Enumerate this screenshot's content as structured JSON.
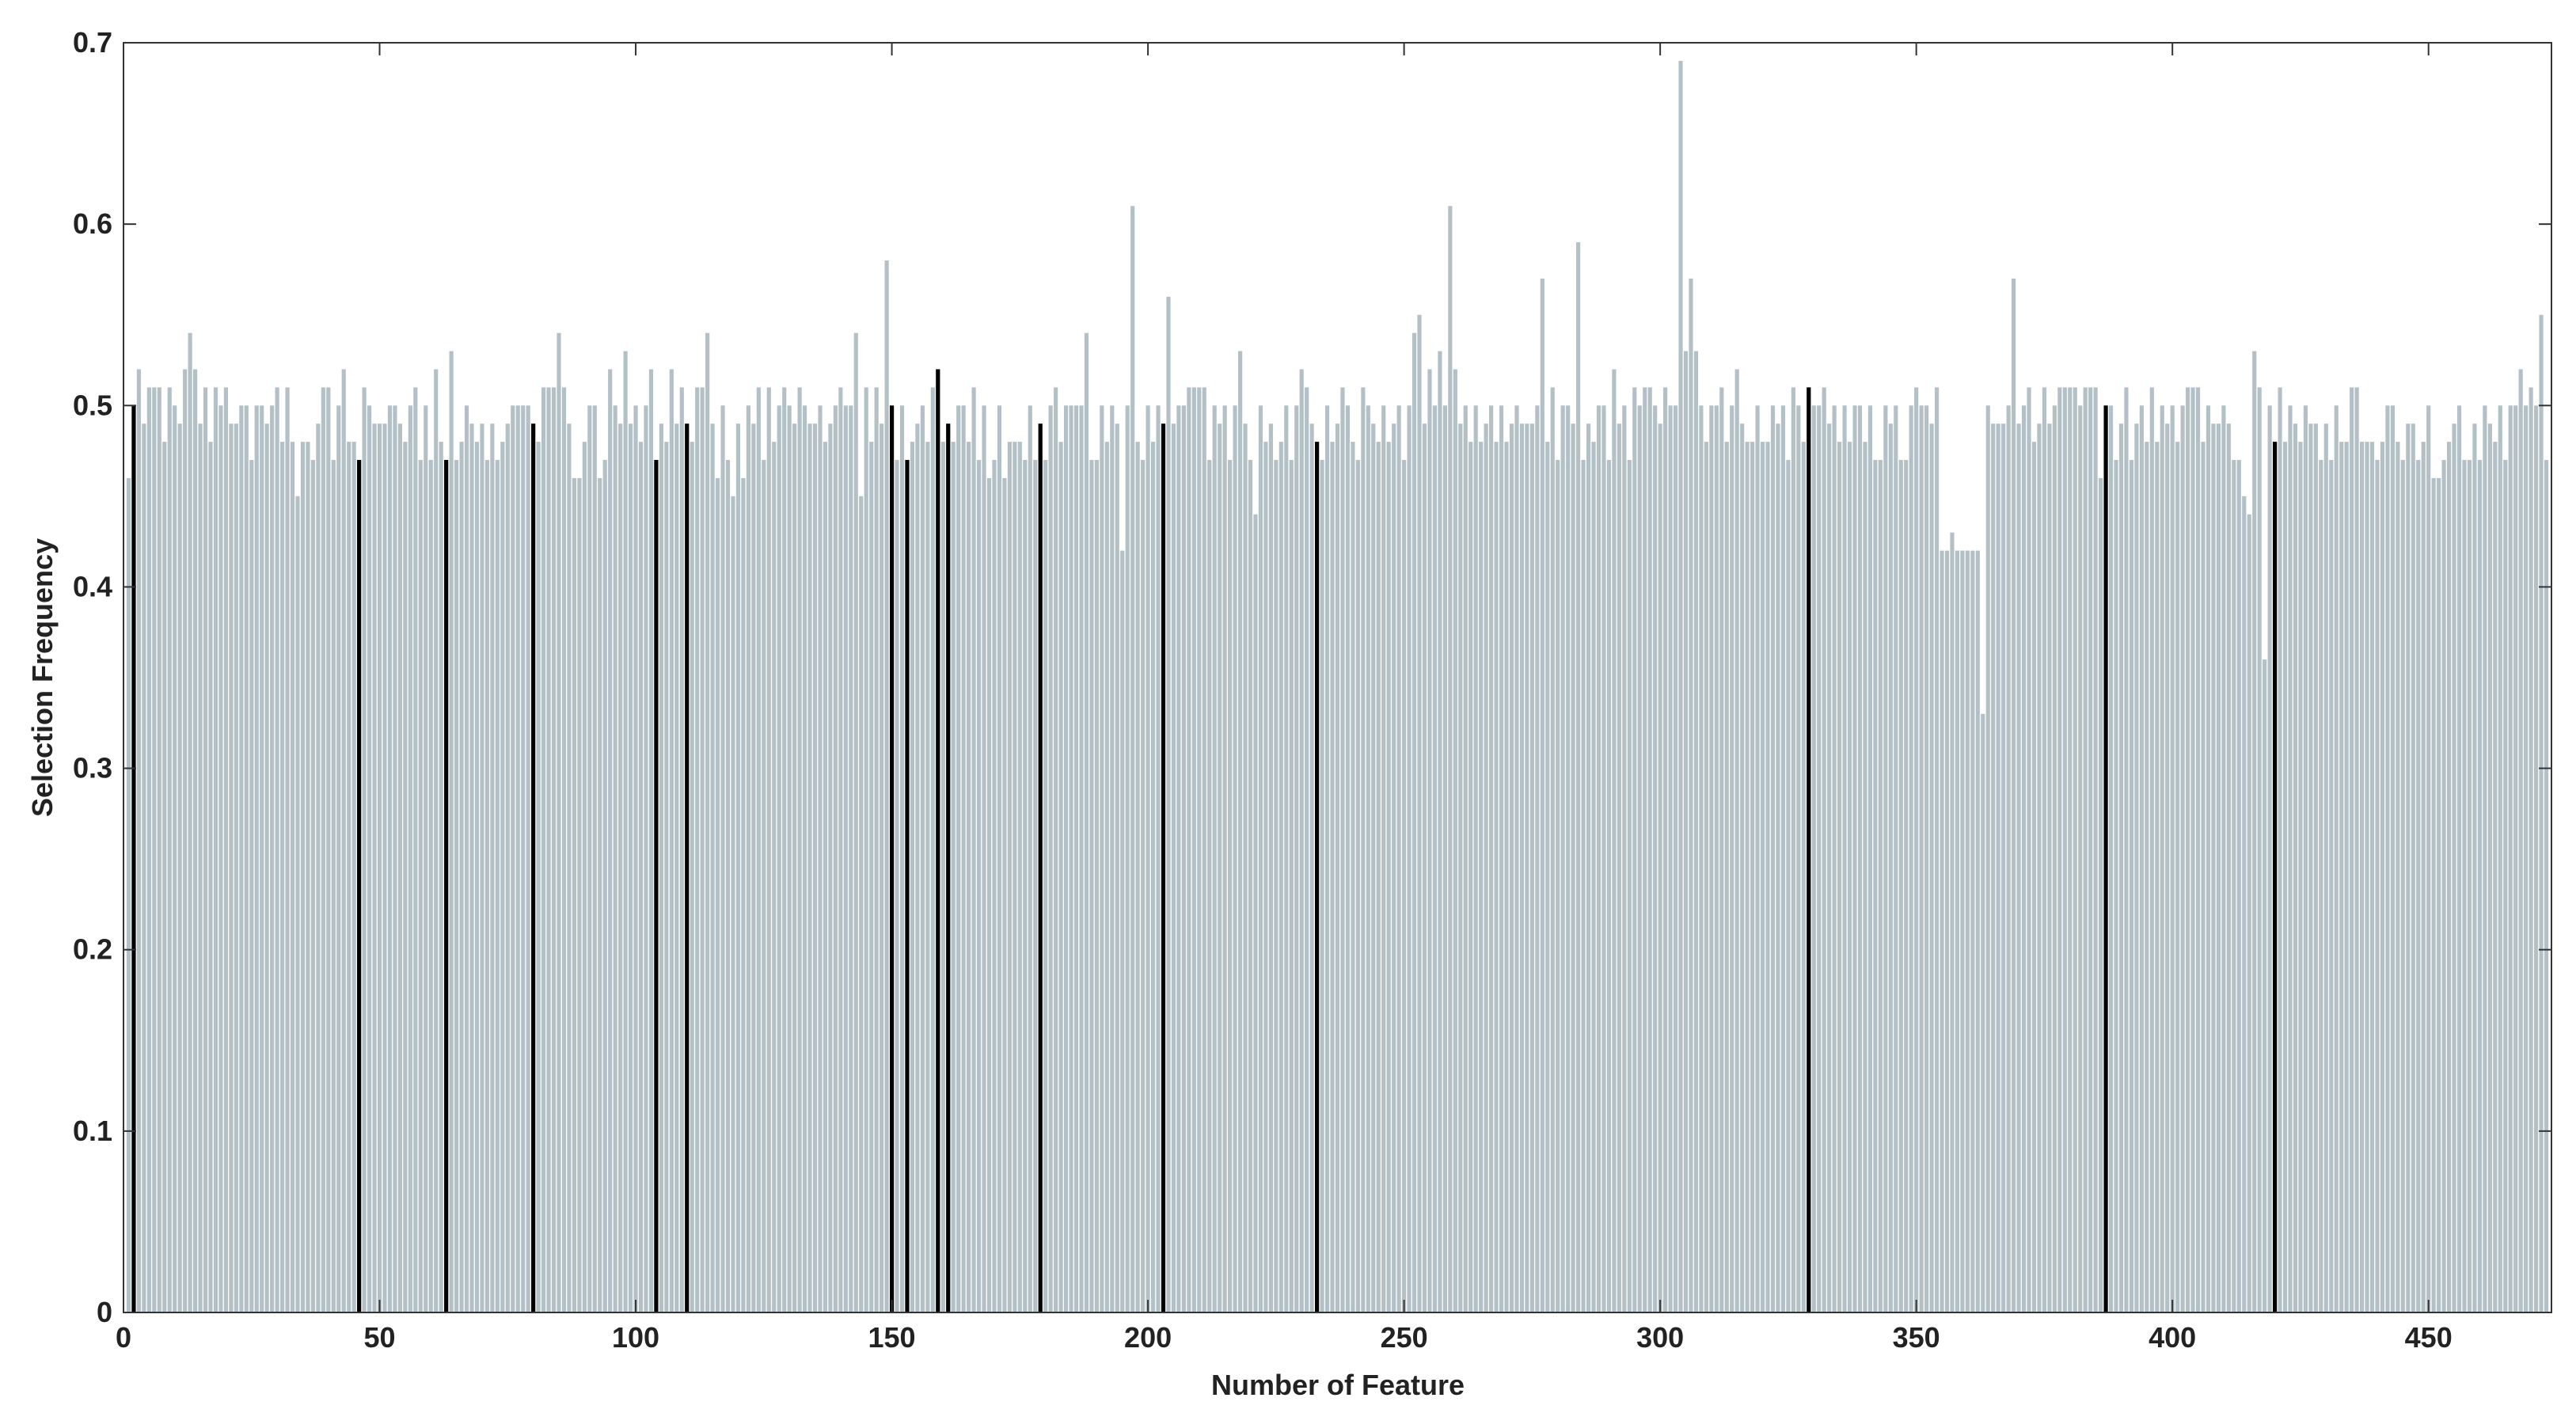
{
  "chart_data": {
    "type": "bar",
    "xlabel": "Number of Feature",
    "ylabel": "Selection Frequency",
    "xlim": [
      0,
      474
    ],
    "ylim": [
      0,
      0.7
    ],
    "xticks": [
      0,
      50,
      100,
      150,
      200,
      250,
      300,
      350,
      400,
      450
    ],
    "yticks": [
      0,
      0.1,
      0.2,
      0.3,
      0.4,
      0.5,
      0.6,
      0.7
    ],
    "series": [
      {
        "color": "#b3c1c7",
        "x": [
          1,
          2,
          3,
          4,
          5,
          6,
          7,
          8,
          9,
          10,
          11,
          12,
          13,
          14,
          15,
          16,
          17,
          18,
          19,
          20,
          21,
          22,
          23,
          24,
          25,
          26,
          27,
          28,
          29,
          30,
          31,
          32,
          33,
          34,
          35,
          36,
          37,
          38,
          39,
          40,
          41,
          42,
          43,
          44,
          45,
          46,
          47,
          48,
          49,
          50,
          51,
          52,
          53,
          54,
          55,
          56,
          57,
          58,
          59,
          60,
          61,
          62,
          63,
          64,
          65,
          66,
          67,
          68,
          69,
          70,
          71,
          72,
          73,
          74,
          75,
          76,
          77,
          78,
          79,
          80,
          81,
          82,
          83,
          84,
          85,
          86,
          87,
          88,
          89,
          90,
          91,
          92,
          93,
          94,
          95,
          96,
          97,
          98,
          99,
          100,
          101,
          102,
          103,
          104,
          105,
          106,
          107,
          108,
          109,
          110,
          111,
          112,
          113,
          114,
          115,
          116,
          117,
          118,
          119,
          120,
          121,
          122,
          123,
          124,
          125,
          126,
          127,
          128,
          129,
          130,
          131,
          132,
          133,
          134,
          135,
          136,
          137,
          138,
          139,
          140,
          141,
          142,
          143,
          144,
          145,
          146,
          147,
          148,
          149,
          150,
          151,
          152,
          153,
          154,
          155,
          156,
          157,
          158,
          159,
          160,
          161,
          162,
          163,
          164,
          165,
          166,
          167,
          168,
          169,
          170,
          171,
          172,
          173,
          174,
          175,
          176,
          177,
          178,
          179,
          180,
          181,
          182,
          183,
          184,
          185,
          186,
          187,
          188,
          189,
          190,
          191,
          192,
          193,
          194,
          195,
          196,
          197,
          198,
          199,
          200,
          201,
          202,
          203,
          204,
          205,
          206,
          207,
          208,
          209,
          210,
          211,
          212,
          213,
          214,
          215,
          216,
          217,
          218,
          219,
          220,
          221,
          222,
          223,
          224,
          225,
          226,
          227,
          228,
          229,
          230,
          231,
          232,
          233,
          234,
          235,
          236,
          237,
          238,
          239,
          240,
          241,
          242,
          243,
          244,
          245,
          246,
          247,
          248,
          249,
          250,
          251,
          252,
          253,
          254,
          255,
          256,
          257,
          258,
          259,
          260,
          261,
          262,
          263,
          264,
          265,
          266,
          267,
          268,
          269,
          270,
          271,
          272,
          273,
          274,
          275,
          276,
          277,
          278,
          279,
          280,
          281,
          282,
          283,
          284,
          285,
          286,
          287,
          288,
          289,
          290,
          291,
          292,
          293,
          294,
          295,
          296,
          297,
          298,
          299,
          300,
          301,
          302,
          303,
          304,
          305,
          306,
          307,
          308,
          309,
          310,
          311,
          312,
          313,
          314,
          315,
          316,
          317,
          318,
          319,
          320,
          321,
          322,
          323,
          324,
          325,
          326,
          327,
          328,
          329,
          330,
          331,
          332,
          333,
          334,
          335,
          336,
          337,
          338,
          339,
          340,
          341,
          342,
          343,
          344,
          345,
          346,
          347,
          348,
          349,
          350,
          351,
          352,
          353,
          354,
          355,
          356,
          357,
          358,
          359,
          360,
          361,
          362,
          363,
          364,
          365,
          366,
          367,
          368,
          369,
          370,
          371,
          372,
          373,
          374,
          375,
          376,
          377,
          378,
          379,
          380,
          381,
          382,
          383,
          384,
          385,
          386,
          387,
          388,
          389,
          390,
          391,
          392,
          393,
          394,
          395,
          396,
          397,
          398,
          399,
          400,
          401,
          402,
          403,
          404,
          405,
          406,
          407,
          408,
          409,
          410,
          411,
          412,
          413,
          414,
          415,
          416,
          417,
          418,
          419,
          420,
          421,
          422,
          423,
          424,
          425,
          426,
          427,
          428,
          429,
          430,
          431,
          432,
          433,
          434,
          435,
          436,
          437,
          438,
          439,
          440,
          441,
          442,
          443,
          444,
          445,
          446,
          447,
          448,
          449,
          450,
          451,
          452,
          453,
          454,
          455,
          456,
          457,
          458,
          459,
          460,
          461,
          462,
          463,
          464,
          465,
          466,
          467,
          468,
          469,
          470,
          471,
          472,
          473
        ],
        "values": [
          0.46,
          0.5,
          0.52,
          0.49,
          0.51,
          0.51,
          0.51,
          0.48,
          0.51,
          0.5,
          0.49,
          0.52,
          0.54,
          0.52,
          0.49,
          0.51,
          0.48,
          0.51,
          0.5,
          0.51,
          0.49,
          0.49,
          0.5,
          0.5,
          0.47,
          0.5,
          0.5,
          0.49,
          0.5,
          0.51,
          0.48,
          0.51,
          0.48,
          0.45,
          0.48,
          0.48,
          0.47,
          0.49,
          0.51,
          0.51,
          0.47,
          0.5,
          0.52,
          0.48,
          0.48,
          0.47,
          0.51,
          0.5,
          0.49,
          0.49,
          0.49,
          0.5,
          0.5,
          0.49,
          0.48,
          0.5,
          0.51,
          0.47,
          0.5,
          0.47,
          0.52,
          0.48,
          0.47,
          0.53,
          0.47,
          0.48,
          0.5,
          0.49,
          0.48,
          0.49,
          0.47,
          0.49,
          0.47,
          0.48,
          0.49,
          0.5,
          0.5,
          0.5,
          0.5,
          0.49,
          0.48,
          0.51,
          0.51,
          0.51,
          0.54,
          0.51,
          0.49,
          0.46,
          0.46,
          0.48,
          0.5,
          0.5,
          0.46,
          0.47,
          0.52,
          0.5,
          0.49,
          0.53,
          0.49,
          0.5,
          0.48,
          0.5,
          0.52,
          0.47,
          0.49,
          0.48,
          0.52,
          0.49,
          0.51,
          0.49,
          0.48,
          0.51,
          0.51,
          0.54,
          0.49,
          0.46,
          0.5,
          0.47,
          0.45,
          0.49,
          0.46,
          0.5,
          0.49,
          0.51,
          0.47,
          0.51,
          0.48,
          0.5,
          0.51,
          0.5,
          0.49,
          0.51,
          0.5,
          0.49,
          0.49,
          0.5,
          0.48,
          0.49,
          0.5,
          0.51,
          0.5,
          0.5,
          0.54,
          0.45,
          0.51,
          0.48,
          0.51,
          0.49,
          0.58,
          0.5,
          0.47,
          0.5,
          0.47,
          0.48,
          0.49,
          0.5,
          0.48,
          0.51,
          0.52,
          0.48,
          0.49,
          0.48,
          0.5,
          0.5,
          0.48,
          0.51,
          0.47,
          0.5,
          0.46,
          0.47,
          0.5,
          0.46,
          0.48,
          0.48,
          0.48,
          0.47,
          0.5,
          0.47,
          0.49,
          0.47,
          0.5,
          0.51,
          0.48,
          0.5,
          0.5,
          0.5,
          0.5,
          0.54,
          0.47,
          0.47,
          0.5,
          0.48,
          0.5,
          0.49,
          0.42,
          0.5,
          0.61,
          0.48,
          0.47,
          0.5,
          0.48,
          0.5,
          0.49,
          0.56,
          0.49,
          0.5,
          0.5,
          0.51,
          0.51,
          0.51,
          0.51,
          0.47,
          0.5,
          0.49,
          0.5,
          0.47,
          0.5,
          0.53,
          0.49,
          0.47,
          0.44,
          0.5,
          0.48,
          0.49,
          0.47,
          0.48,
          0.5,
          0.47,
          0.5,
          0.52,
          0.51,
          0.49,
          0.48,
          0.47,
          0.5,
          0.48,
          0.49,
          0.51,
          0.5,
          0.48,
          0.47,
          0.51,
          0.5,
          0.49,
          0.48,
          0.5,
          0.48,
          0.49,
          0.5,
          0.47,
          0.5,
          0.54,
          0.55,
          0.49,
          0.52,
          0.5,
          0.53,
          0.5,
          0.61,
          0.52,
          0.49,
          0.5,
          0.48,
          0.5,
          0.48,
          0.49,
          0.5,
          0.48,
          0.5,
          0.48,
          0.49,
          0.5,
          0.49,
          0.49,
          0.49,
          0.5,
          0.57,
          0.48,
          0.51,
          0.47,
          0.5,
          0.5,
          0.49,
          0.59,
          0.47,
          0.49,
          0.48,
          0.5,
          0.5,
          0.47,
          0.52,
          0.49,
          0.5,
          0.47,
          0.51,
          0.5,
          0.51,
          0.51,
          0.5,
          0.49,
          0.51,
          0.5,
          0.5,
          0.69,
          0.53,
          0.57,
          0.53,
          0.5,
          0.48,
          0.5,
          0.5,
          0.51,
          0.48,
          0.5,
          0.52,
          0.49,
          0.48,
          0.48,
          0.5,
          0.48,
          0.48,
          0.5,
          0.49,
          0.5,
          0.47,
          0.51,
          0.5,
          0.48,
          0.51,
          0.5,
          0.5,
          0.51,
          0.49,
          0.5,
          0.48,
          0.5,
          0.48,
          0.5,
          0.5,
          0.48,
          0.5,
          0.47,
          0.47,
          0.5,
          0.49,
          0.5,
          0.47,
          0.47,
          0.5,
          0.51,
          0.5,
          0.5,
          0.49,
          0.51,
          0.42,
          0.42,
          0.43,
          0.42,
          0.42,
          0.42,
          0.42,
          0.42,
          0.33,
          0.5,
          0.49,
          0.49,
          0.49,
          0.5,
          0.57,
          0.49,
          0.5,
          0.51,
          0.48,
          0.49,
          0.51,
          0.49,
          0.5,
          0.51,
          0.51,
          0.51,
          0.51,
          0.5,
          0.51,
          0.51,
          0.51,
          0.46,
          0.5,
          0.5,
          0.47,
          0.49,
          0.51,
          0.47,
          0.49,
          0.5,
          0.48,
          0.51,
          0.48,
          0.5,
          0.49,
          0.5,
          0.48,
          0.5,
          0.51,
          0.51,
          0.51,
          0.48,
          0.5,
          0.49,
          0.49,
          0.5,
          0.49,
          0.47,
          0.47,
          0.45,
          0.44,
          0.53,
          0.51,
          0.36,
          0.5,
          0.48,
          0.51,
          0.48,
          0.5,
          0.49,
          0.48,
          0.5,
          0.49,
          0.49,
          0.47,
          0.49,
          0.47,
          0.5,
          0.48,
          0.48,
          0.51,
          0.51,
          0.48,
          0.48,
          0.48,
          0.47,
          0.48,
          0.5,
          0.5,
          0.48,
          0.47,
          0.49,
          0.49,
          0.47,
          0.48,
          0.5,
          0.46,
          0.46,
          0.47,
          0.48,
          0.49,
          0.5,
          0.47,
          0.47,
          0.49,
          0.47,
          0.5,
          0.49,
          0.48,
          0.5,
          0.47,
          0.5,
          0.5,
          0.52,
          0.5,
          0.51,
          0.5,
          0.55,
          0.47
        ]
      },
      {
        "color": "#000000",
        "x": [
          2,
          46,
          63,
          80,
          104,
          110,
          150,
          153,
          159,
          161,
          179,
          203,
          233,
          329,
          387,
          420
        ],
        "values": [
          0.5,
          0.47,
          0.47,
          0.49,
          0.47,
          0.49,
          0.5,
          0.47,
          0.52,
          0.49,
          0.49,
          0.49,
          0.48,
          0.51,
          0.5,
          0.48
        ]
      }
    ]
  }
}
